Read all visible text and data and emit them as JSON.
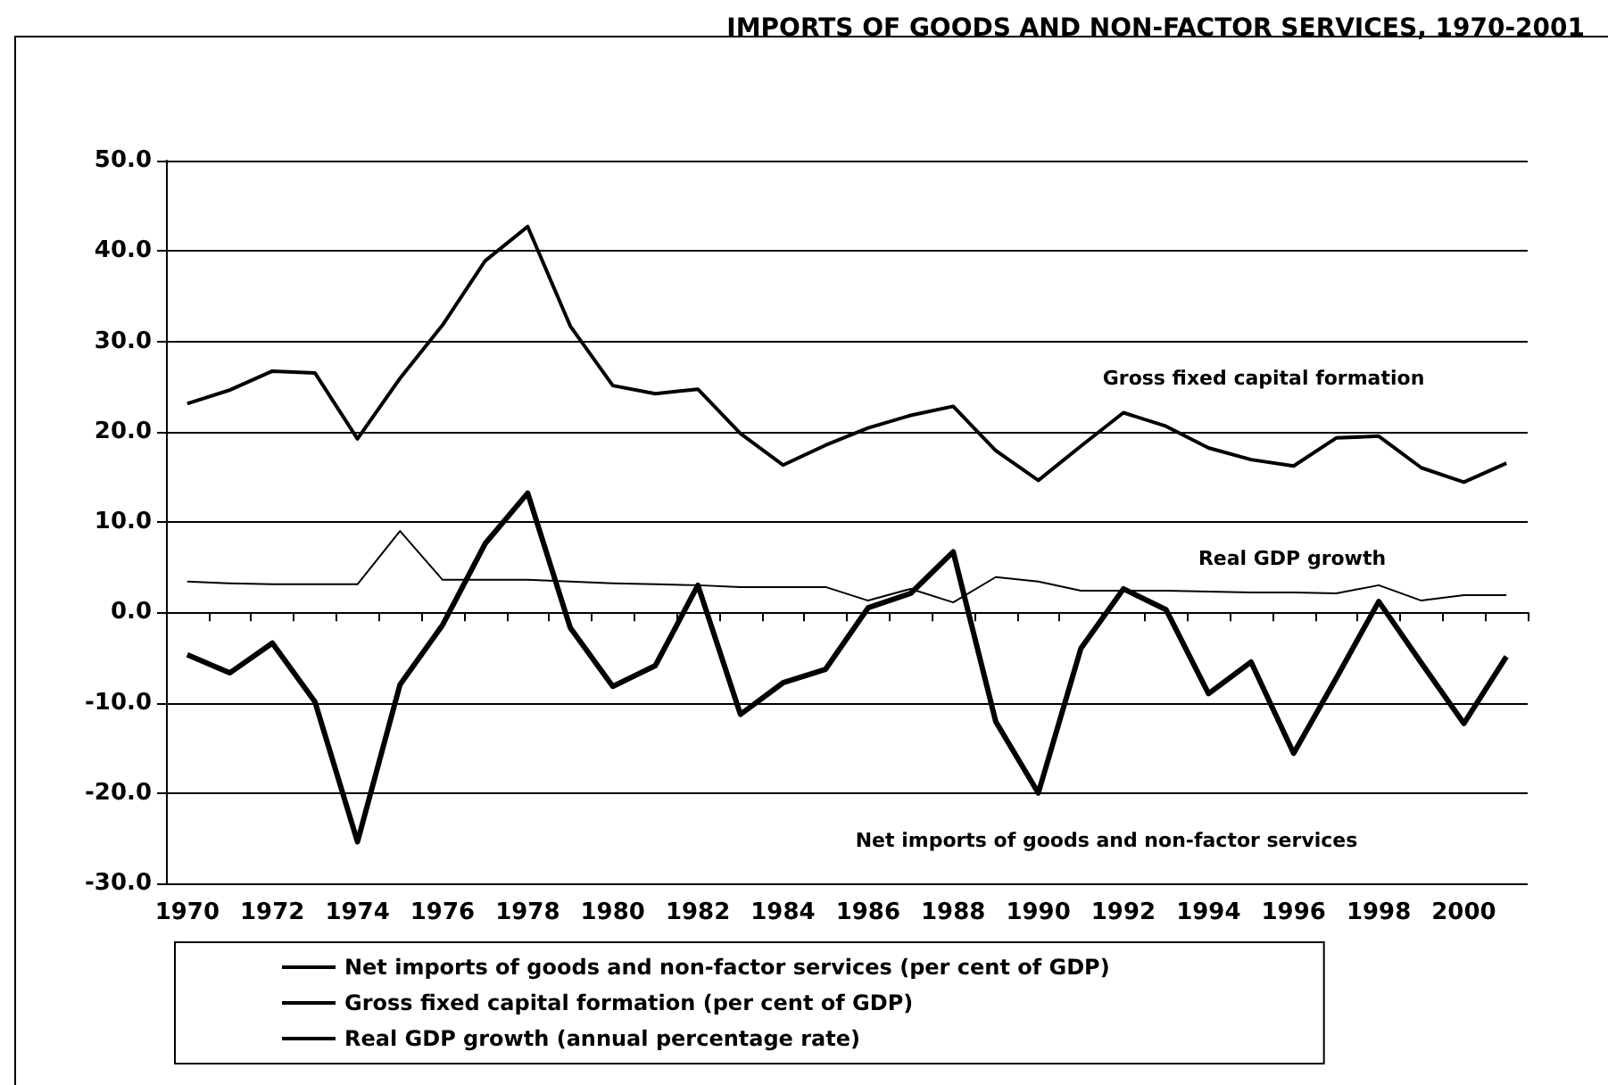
{
  "chart_data": {
    "type": "line",
    "title": "IMPORTS OF GOODS AND NON-FACTOR SERVICES, 1970-2001",
    "categories": [
      "1970",
      null,
      "1972",
      null,
      "1974",
      null,
      "1976",
      null,
      "1978",
      null,
      "1980",
      null,
      "1982",
      null,
      "1984",
      null,
      "1986",
      null,
      "1988",
      null,
      "1990",
      null,
      "1992",
      null,
      "1994",
      null,
      "1996",
      null,
      "1998",
      null,
      "2000",
      null
    ],
    "series": [
      {
        "name": "Net imports of goods and non-factor services (per cent of GDP)",
        "color": "#000000",
        "values": [
          -4.7,
          -6.7,
          -3.4,
          -9.9,
          -25.4,
          -8.0,
          -1.4,
          7.6,
          13.2,
          -1.7,
          -8.2,
          -5.9,
          3.0,
          -11.3,
          -7.8,
          -6.3,
          0.5,
          2.1,
          6.7,
          -12.1,
          -20.0,
          -4.0,
          2.6,
          0.3,
          -9.0,
          -5.5,
          -15.6,
          -7.3,
          1.2,
          -5.6,
          -12.3,
          -4.9
        ]
      },
      {
        "name": "Gross fixed capital formation (per cent of GDP)",
        "color": "#000000",
        "values": [
          23.1,
          24.6,
          26.7,
          26.5,
          19.2,
          25.9,
          31.8,
          38.9,
          42.7,
          31.7,
          25.1,
          24.2,
          24.7,
          19.8,
          16.3,
          18.5,
          20.4,
          21.8,
          22.8,
          17.9,
          14.6,
          18.4,
          22.1,
          20.6,
          18.2,
          16.9,
          16.2,
          19.3,
          19.5,
          16.0,
          14.4,
          16.5
        ]
      },
      {
        "name": "Real GDP growth (annual percentage rate)",
        "color": "#000000",
        "values": [
          3.4,
          3.2,
          3.1,
          3.1,
          3.1,
          9.0,
          3.6,
          3.6,
          3.6,
          3.4,
          3.2,
          3.1,
          3.0,
          2.8,
          2.8,
          2.8,
          1.3,
          2.6,
          1.1,
          3.9,
          3.4,
          2.4,
          2.4,
          2.4,
          2.3,
          2.2,
          2.2,
          2.1,
          3.0,
          1.3,
          1.9,
          1.9
        ]
      }
    ],
    "ylim": [
      -30,
      50
    ],
    "yticks": [
      {
        "value": -30,
        "label": "-30.0"
      },
      {
        "value": -20,
        "label": "-20.0"
      },
      {
        "value": -10,
        "label": "-10.0"
      },
      {
        "value": 0,
        "label": "0.0"
      },
      {
        "value": 10,
        "label": "10.0"
      },
      {
        "value": 20,
        "label": "20.0"
      },
      {
        "value": 30,
        "label": "30.0"
      },
      {
        "value": 40,
        "label": "40.0"
      },
      {
        "value": 50,
        "label": "50.0"
      }
    ],
    "annotations": [
      "Gross fixed capital formation",
      "Real GDP growth",
      "Net imports of goods and non-factor services"
    ],
    "grid": "y",
    "legend": "bottom",
    "marker": "none",
    "line_style": "solid"
  }
}
